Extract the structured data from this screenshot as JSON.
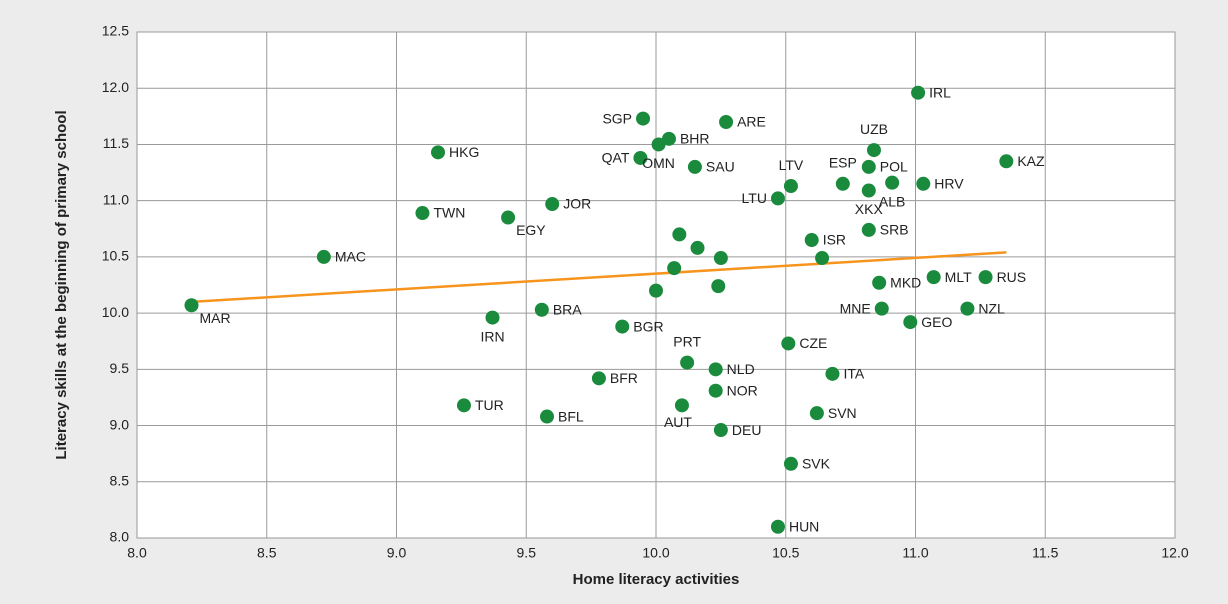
{
  "chart_data": {
    "type": "scatter",
    "x_label": "Home literacy activities",
    "y_label": "Literacy skills at the beginning of primary school",
    "labels": [
      "MAR",
      "MAC",
      "HKG",
      "TWN",
      "EGY",
      "JOR",
      "IRN",
      "BRA",
      "TUR",
      "BFL",
      "BFR",
      "BGR",
      "SGP",
      "QAT",
      "OMN",
      "BHR",
      "SAU",
      "ARE",
      null,
      null,
      null,
      null,
      null,
      null,
      "PRT",
      "NLD",
      "NOR",
      "AUT",
      "DEU",
      "HUN",
      "SVK",
      "SVN",
      "ITA",
      "CZE",
      "LTU",
      "LTV",
      "ISR",
      null,
      "ESP",
      "POL",
      "UZB",
      "XKX",
      "ALB",
      "SRB",
      "HRV",
      "MKD",
      "MNE",
      "MLT",
      "RUS",
      "GEO",
      "NZL",
      "IRL",
      "KAZ"
    ],
    "x": [
      8.21,
      8.72,
      9.16,
      9.1,
      9.43,
      9.6,
      9.37,
      9.56,
      9.26,
      9.58,
      9.78,
      9.87,
      9.95,
      9.94,
      10.01,
      10.05,
      10.15,
      10.27,
      10.09,
      10.16,
      10.25,
      10.07,
      10.0,
      10.24,
      10.12,
      10.23,
      10.23,
      10.1,
      10.25,
      10.47,
      10.52,
      10.62,
      10.68,
      10.51,
      10.47,
      10.52,
      10.6,
      10.64,
      10.72,
      10.82,
      10.84,
      10.82,
      10.91,
      10.82,
      11.03,
      10.86,
      10.87,
      11.07,
      11.27,
      10.98,
      11.2,
      11.01,
      11.35
    ],
    "y": [
      10.07,
      10.5,
      11.43,
      10.89,
      10.85,
      10.97,
      9.96,
      10.03,
      9.18,
      9.08,
      9.42,
      9.88,
      11.73,
      11.38,
      11.5,
      11.55,
      11.3,
      11.7,
      10.7,
      10.58,
      10.49,
      10.4,
      10.2,
      10.24,
      9.56,
      9.5,
      9.31,
      9.18,
      8.96,
      8.1,
      8.66,
      9.11,
      9.46,
      9.73,
      11.02,
      11.13,
      10.65,
      10.49,
      11.15,
      11.3,
      11.45,
      11.09,
      11.16,
      10.74,
      11.15,
      10.27,
      10.04,
      10.32,
      10.32,
      9.92,
      10.04,
      11.96,
      11.35
    ],
    "color": "#1a8a3c",
    "trendline": {
      "x": [
        8.21,
        11.35
      ],
      "y": [
        10.1,
        10.54
      ],
      "color": "#f7941d"
    },
    "xlim": [
      8,
      12
    ],
    "xticks": [
      {
        "value": 8,
        "label": "8.0"
      },
      {
        "value": 8.5,
        "label": "8.5"
      },
      {
        "value": 9,
        "label": "9.0"
      },
      {
        "value": 9.5,
        "label": "9.5"
      },
      {
        "value": 10,
        "label": "10.0"
      },
      {
        "value": 10.5,
        "label": "10.5"
      },
      {
        "value": 11,
        "label": "11.0"
      },
      {
        "value": 11.5,
        "label": "11.5"
      },
      {
        "value": 12,
        "label": "12.0"
      }
    ],
    "ylim": [
      8,
      12.5
    ],
    "yticks": [
      {
        "value": 8,
        "label": "8.0"
      },
      {
        "value": 8.5,
        "label": "8.5"
      },
      {
        "value": 9,
        "label": "9.0"
      },
      {
        "value": 9.5,
        "label": "9.5"
      },
      {
        "value": 10,
        "label": "10.0"
      },
      {
        "value": 10.5,
        "label": "10.5"
      },
      {
        "value": 11,
        "label": "11.0"
      },
      {
        "value": 11.5,
        "label": "11.5"
      },
      {
        "value": 12,
        "label": "12.0"
      },
      {
        "value": 12.5,
        "label": "12.5"
      }
    ],
    "grid": true
  }
}
